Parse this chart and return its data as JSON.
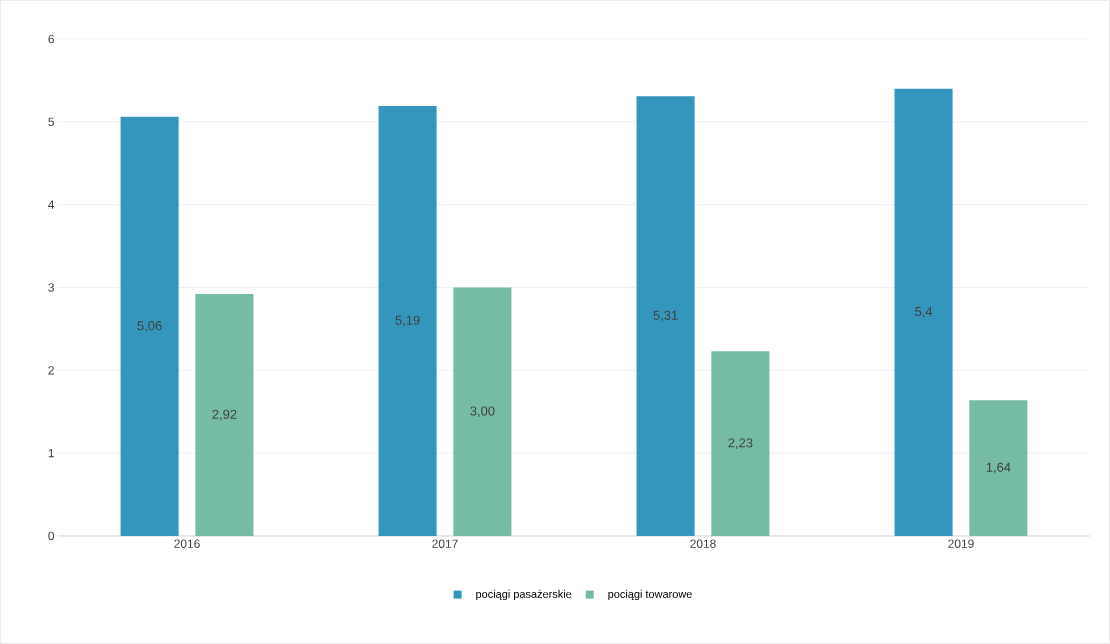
{
  "chart_data": {
    "type": "bar",
    "categories": [
      "2016",
      "2017",
      "2018",
      "2019"
    ],
    "series": [
      {
        "name": "pociągi pasażerskie",
        "color": "#3596bd",
        "values": [
          5.06,
          5.19,
          5.31,
          5.4
        ],
        "value_labels": [
          "5,06",
          "5,19",
          "5,31",
          "5,4"
        ]
      },
      {
        "name": "pociągi towarowe",
        "color": "#76bca4",
        "values": [
          2.92,
          3.0,
          2.23,
          1.64
        ],
        "value_labels": [
          "2,92",
          "3,00",
          "2,23",
          "1,64"
        ]
      }
    ],
    "ylim": [
      0,
      6
    ],
    "yticks": [
      0,
      1,
      2,
      3,
      4,
      5,
      6
    ],
    "grid": "y",
    "legend": "bottom"
  }
}
